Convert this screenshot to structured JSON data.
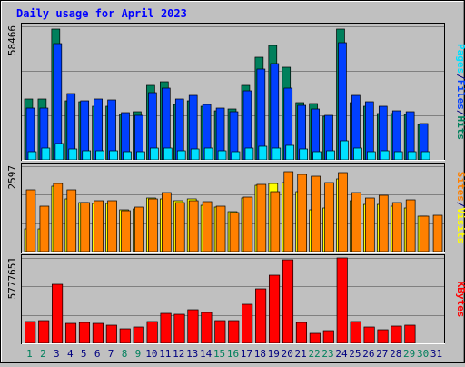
{
  "chart_data": {
    "type": "bar",
    "title": "Daily usage for April 2023",
    "colors": {
      "background": "#c0c0c0",
      "plot_background": "#c0c0c0",
      "gridline": "#808080",
      "title": "#0000ff",
      "hits": "#00805c",
      "files": "#0040ff",
      "pages": "#00e0ff",
      "visits": "#ffff00",
      "sites": "#ff8000",
      "kbytes": "#ff0000",
      "weekend_label": "#00805c",
      "weekday_label": "#000080"
    },
    "categories": [
      "1",
      "2",
      "3",
      "4",
      "5",
      "6",
      "7",
      "8",
      "9",
      "10",
      "11",
      "12",
      "13",
      "14",
      "15",
      "16",
      "17",
      "18",
      "19",
      "20",
      "21",
      "22",
      "23",
      "24",
      "25",
      "26",
      "27",
      "28",
      "29",
      "30",
      "31"
    ],
    "weekend_days": [
      "1",
      "2",
      "8",
      "9",
      "15",
      "16",
      "22",
      "23",
      "29",
      "30"
    ],
    "panels": [
      {
        "name": "hits-files-pages",
        "ymax_label": "58466",
        "ymax": 58466,
        "side_label_parts": [
          {
            "text": "Pages",
            "color": "#00e0ff"
          },
          {
            "text": "/",
            "color": "#000080"
          },
          {
            "text": "Files",
            "color": "#0040ff"
          },
          {
            "text": "/",
            "color": "#000080"
          },
          {
            "text": "Hits",
            "color": "#00805c"
          }
        ],
        "series": [
          {
            "name": "Hits",
            "color": "#00805c",
            "values": [
              26500,
              26500,
              57400,
              26000,
              25400,
              23400,
              23400,
              20000,
              21200,
              32800,
              34400,
              24200,
              25800,
              23600,
              21600,
              22200,
              32800,
              44800,
              50100,
              40400,
              24900,
              24600,
              19000,
              57400,
              25000,
              23600,
              20100,
              20200,
              20000,
              15500,
              0
            ]
          },
          {
            "text": "",
            "name": "Files",
            "color": "#0040ff",
            "values": [
              22800,
              22800,
              51000,
              29000,
              25900,
              26800,
              26100,
              20600,
              19600,
              29400,
              31400,
              26800,
              28200,
              24400,
              22500,
              21000,
              30100,
              39800,
              42300,
              31500,
              23900,
              22300,
              19600,
              51500,
              28300,
              25300,
              23400,
              21400,
              21200,
              16100,
              0
            ]
          },
          {
            "name": "Pages",
            "color": "#00e0ff",
            "values": [
              3700,
              5300,
              7300,
              4700,
              4000,
              3900,
              3800,
              3700,
              3500,
              5000,
              5000,
              3800,
              4700,
              5000,
              3800,
              3700,
              5300,
              5900,
              5200,
              6300,
              4700,
              3700,
              4000,
              8500,
              5300,
              3700,
              4000,
              3600,
              3400,
              3700,
              0
            ]
          }
        ]
      },
      {
        "name": "visits-sites",
        "ymax_label": "2597",
        "ymax": 2597,
        "side_label_parts": [
          {
            "text": "Sites",
            "color": "#ff8000"
          },
          {
            "text": "/",
            "color": "#000080"
          },
          {
            "text": "Visits",
            "color": "#ffff00"
          }
        ],
        "series": [
          {
            "name": "Visits",
            "color": "#ffff00",
            "values": [
              700,
              700,
              1990,
              1600,
              1500,
              1470,
              1460,
              1260,
              1300,
              1620,
              1600,
              1550,
              1600,
              1410,
              1360,
              1220,
              1620,
              2020,
              2060,
              2110,
              1810,
              1270,
              1320,
              2200,
              1560,
              1430,
              1430,
              1370,
              1320,
              1070,
              0
            ]
          },
          {
            "name": "Sites",
            "color": "#ff8000",
            "values": [
              1880,
              1370,
              2070,
              1890,
              1480,
              1540,
              1540,
              1250,
              1340,
              1610,
              1800,
              1480,
              1550,
              1520,
              1370,
              1200,
              1660,
              2050,
              1830,
              2430,
              2350,
              2290,
              2110,
              2410,
              1790,
              1620,
              1700,
              1480,
              1570,
              1080,
              1100
            ]
          }
        ]
      },
      {
        "name": "kbytes",
        "ymax_label": "5777651",
        "ymax": 5777651,
        "side_label_parts": [
          {
            "text": "KBytes",
            "color": "#ff0000"
          }
        ],
        "series": [
          {
            "name": "KBytes",
            "color": "#ff0000",
            "values": [
              1450000,
              1530000,
              4000000,
              1330000,
              1400000,
              1330000,
              1230000,
              1000000,
              1100000,
              1500000,
              2000000,
              1960000,
              2250000,
              2100000,
              1560000,
              1550000,
              2620000,
              3690000,
              4600000,
              5630000,
              1400000,
              670000,
              890000,
              5780000,
              1500000,
              1130000,
              930000,
              1180000,
              1210000,
              0,
              0
            ]
          }
        ]
      }
    ]
  }
}
